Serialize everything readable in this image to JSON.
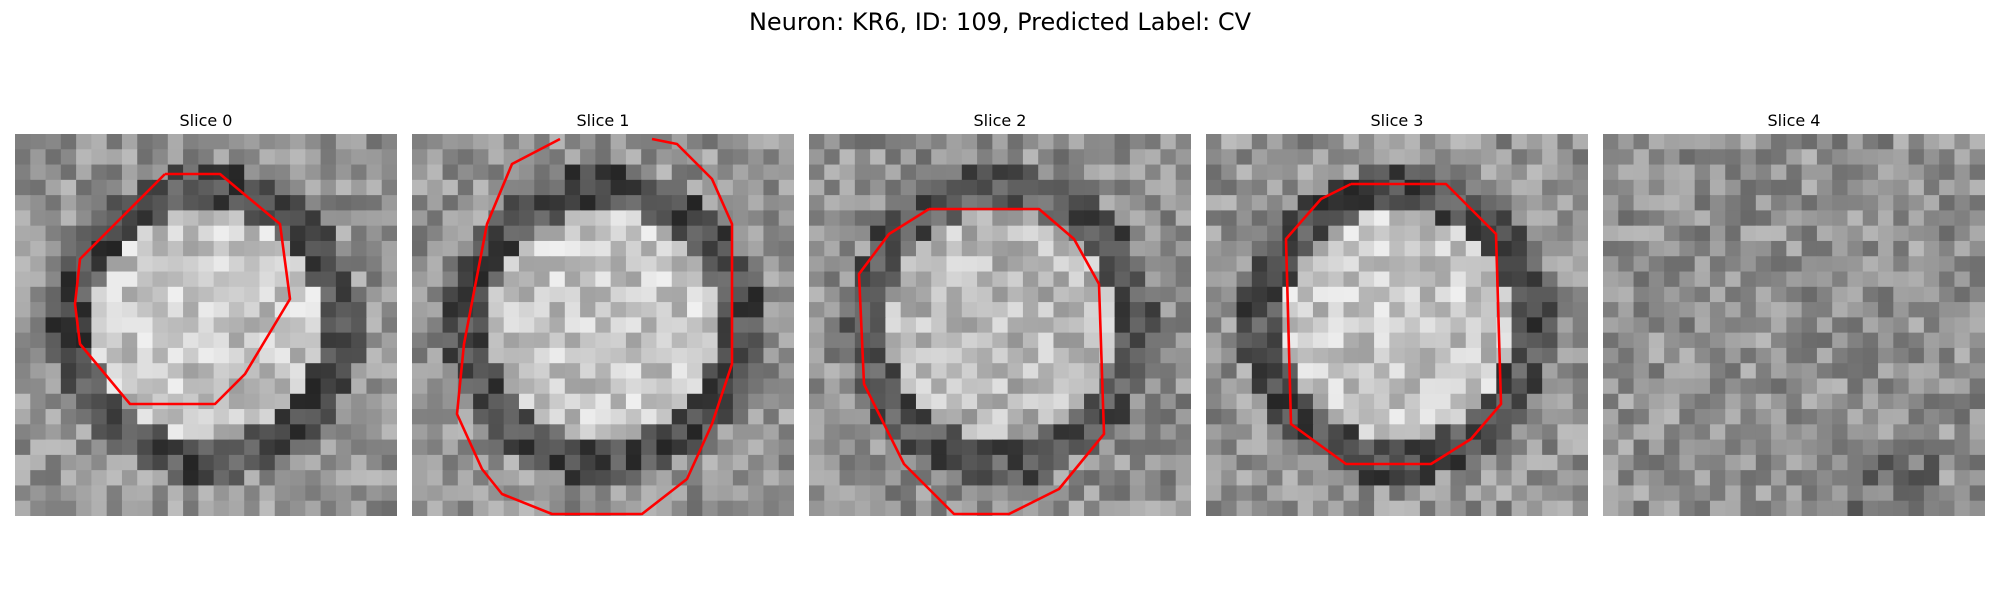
{
  "figure": {
    "title": "Neuron: KR6, ID: 109, Predicted Label: CV",
    "contour_color": "#ff0000"
  },
  "panels": [
    {
      "title": "Slice 0",
      "seed": 11,
      "contrast": 1.0,
      "ring": true
    },
    {
      "title": "Slice 1",
      "seed": 23,
      "contrast": 1.0,
      "ring": true
    },
    {
      "title": "Slice 2",
      "seed": 37,
      "contrast": 0.8,
      "ring": true
    },
    {
      "title": "Slice 3",
      "seed": 41,
      "contrast": 1.0,
      "ring": true
    },
    {
      "title": "Slice 4",
      "seed": 59,
      "contrast": 0.35,
      "ring": false
    }
  ]
}
